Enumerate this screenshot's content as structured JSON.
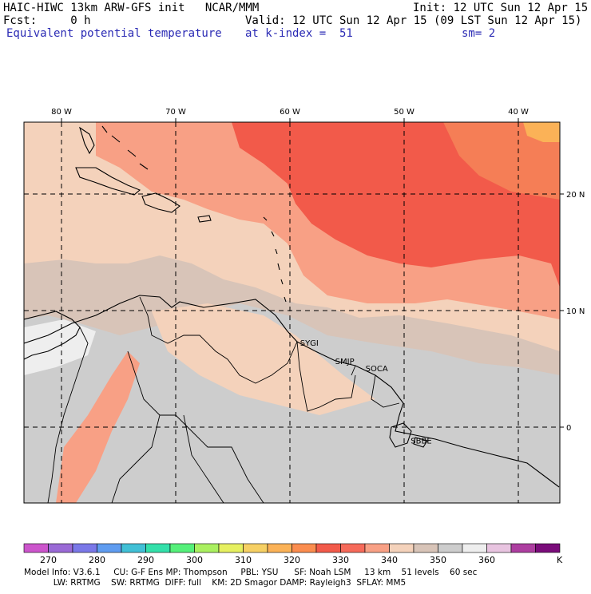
{
  "header": {
    "line1_left": "HAIC-HIWC 13km ARW-GFS init   NCAR/MMM",
    "line1_right": "Init: 12 UTC Sun 12 Apr 15",
    "line2_left": "Fcst:     0 h",
    "line2_right": "Valid: 12 UTC Sun 12 Apr 15 (09 LST Sun 12 Apr 15)",
    "line3_left": "Equivalent potential temperature",
    "line3_mid": "at k-index =  51",
    "line3_right": "sm= 2"
  },
  "map": {
    "lon_labels": [
      "80 W",
      "70 W",
      "60 W",
      "50 W",
      "40 W"
    ],
    "lat_labels": [
      "20 N",
      "10 N",
      "0"
    ],
    "stations": [
      {
        "name": "SYGI",
        "lon": -58.3,
        "lat": 7.0
      },
      {
        "name": "SMJP",
        "lon": -55.2,
        "lat": 5.4
      },
      {
        "name": "SOCA",
        "lon": -52.4,
        "lat": 4.8
      },
      {
        "name": "SBBE",
        "lon": -48.5,
        "lat": -1.4
      }
    ],
    "station_color": "#e000e0"
  },
  "colorbar": {
    "colors": [
      "#cc55cc",
      "#9a6ad6",
      "#7a78e8",
      "#5f9cf0",
      "#41c0d6",
      "#33e0aa",
      "#55f07a",
      "#aaf060",
      "#e6f060",
      "#f6d064",
      "#fbb257",
      "#fb8d4f",
      "#f25a4a",
      "#f66a5a",
      "#f8a085",
      "#f4d2bb",
      "#d8c4b8",
      "#cdcdcd",
      "#eeeeee",
      "#e8c4e0",
      "#ad3ea0",
      "#7a0c7a"
    ],
    "labels": [
      "270",
      "280",
      "290",
      "300",
      "310",
      "320",
      "330",
      "340",
      "350",
      "360"
    ],
    "unit": "K"
  },
  "footer": {
    "line1": "Model Info: V3.6.1     CU: G-F Ens MP: Thompson     PBL: YSU      SF: Noah LSM     13 km    51 levels    60 sec",
    "line2": "           LW: RRTMG    SW: RRTMG  DIFF: full    KM: 2D Smagor DAMP: Rayleigh3  SFLAY: MM5"
  },
  "field_colors": {
    "far_orange": "#fbb257",
    "deep_orange": "#f57e56",
    "red": "#f25a4a",
    "salmon": "#f8a085",
    "light_peach": "#f4d2bb",
    "tan_gray": "#d8c4b8",
    "gray": "#cdcdcd",
    "white": "#eeeeee"
  }
}
